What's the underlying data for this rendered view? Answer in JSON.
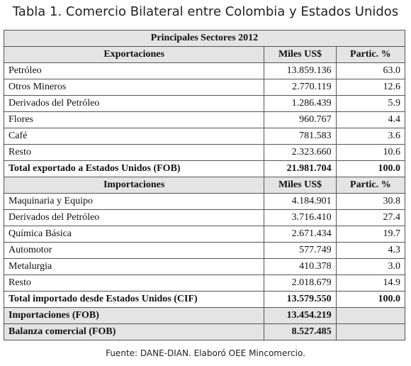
{
  "title": "Tabla 1. Comercio Bilateral entre Colombia y Estados Unidos",
  "table": {
    "caption": "Principales Sectores 2012",
    "sections": [
      {
        "header": [
          "Exportaciones",
          "Miles US$",
          "Partic. %"
        ],
        "rows": [
          [
            "Petróleo",
            "13.859.136",
            "63.0"
          ],
          [
            "Otros Mineros",
            "2.770.119",
            "12.6"
          ],
          [
            "Derivados del Petróleo",
            "1.286.439",
            "5.9"
          ],
          [
            "Flores",
            "960.767",
            "4.4"
          ],
          [
            "Café",
            "781.583",
            "3.6"
          ],
          [
            "Resto",
            "2.323.660",
            "10.6"
          ]
        ],
        "total": [
          "Total exportado a Estados Unidos (FOB)",
          "21.981.704",
          "100.0"
        ]
      },
      {
        "header": [
          "Importaciones",
          "Miles US$",
          "Partic. %"
        ],
        "rows": [
          [
            "Maquinaria y Equipo",
            "4.184.901",
            "30.8"
          ],
          [
            "Derivados del Petróleo",
            "3.716.410",
            "27.4"
          ],
          [
            "Química Básica",
            "2.671.434",
            "19.7"
          ],
          [
            "Automotor",
            "577.749",
            "4.3"
          ],
          [
            "Metalurgia",
            "410.378",
            "3.0"
          ],
          [
            "Resto",
            "2.018.679",
            "14.9"
          ]
        ],
        "total": [
          "Total importado desde Estados Unidos (CIF)",
          "13.579.550",
          "100.0"
        ]
      }
    ],
    "summary": [
      [
        "Importaciones (FOB)",
        "13.454.219"
      ],
      [
        "Balanza comercial (FOB)",
        "8.527.485"
      ]
    ]
  },
  "footer": "Fuente: DANE-DIAN. Elaboró OEE Mincomercio."
}
